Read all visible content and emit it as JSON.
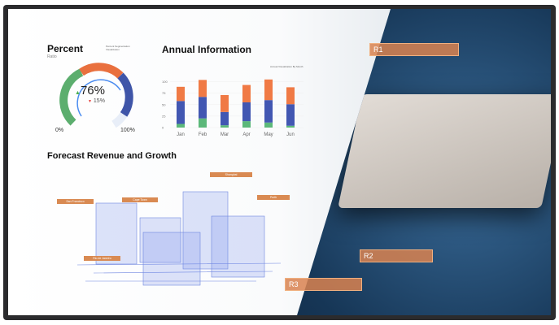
{
  "percent": {
    "title": "Percent",
    "subtitle": "Ratio",
    "note": "Percent Segmentation Visualization",
    "value": "76%",
    "change": "15%",
    "min_label": "0%",
    "max_label": "100%",
    "level": 76
  },
  "annual": {
    "title": "Annual Information",
    "note": "Annual Visualization By Month"
  },
  "chart_data": {
    "type": "bar",
    "stacked": true,
    "categories": [
      "Jan",
      "Feb",
      "Mar",
      "Apr",
      "May",
      "Jun"
    ],
    "yticks": [
      "0",
      "25",
      "50",
      "75",
      "100"
    ],
    "ylim": [
      0,
      110
    ],
    "series": [
      {
        "values": [
          8,
          20,
          5,
          14,
          11,
          4
        ],
        "color": "#5cb87a"
      },
      {
        "values": [
          50,
          47,
          29,
          41,
          49,
          47
        ],
        "color": "#4257b2"
      },
      {
        "values": [
          31,
          37,
          37,
          38,
          45,
          37
        ],
        "color": "#f07a45"
      }
    ]
  },
  "forecast": {
    "title": "Forecast Revenue and Growth",
    "labels": [
      "San Francisco",
      "Cape Town",
      "Shanghai",
      "Perth",
      "Rio de Janeiro"
    ]
  },
  "regions": [
    "R1",
    "R2",
    "R3"
  ],
  "colors": {
    "accent": "#d98a52",
    "bezel": "#2b2b2d"
  }
}
